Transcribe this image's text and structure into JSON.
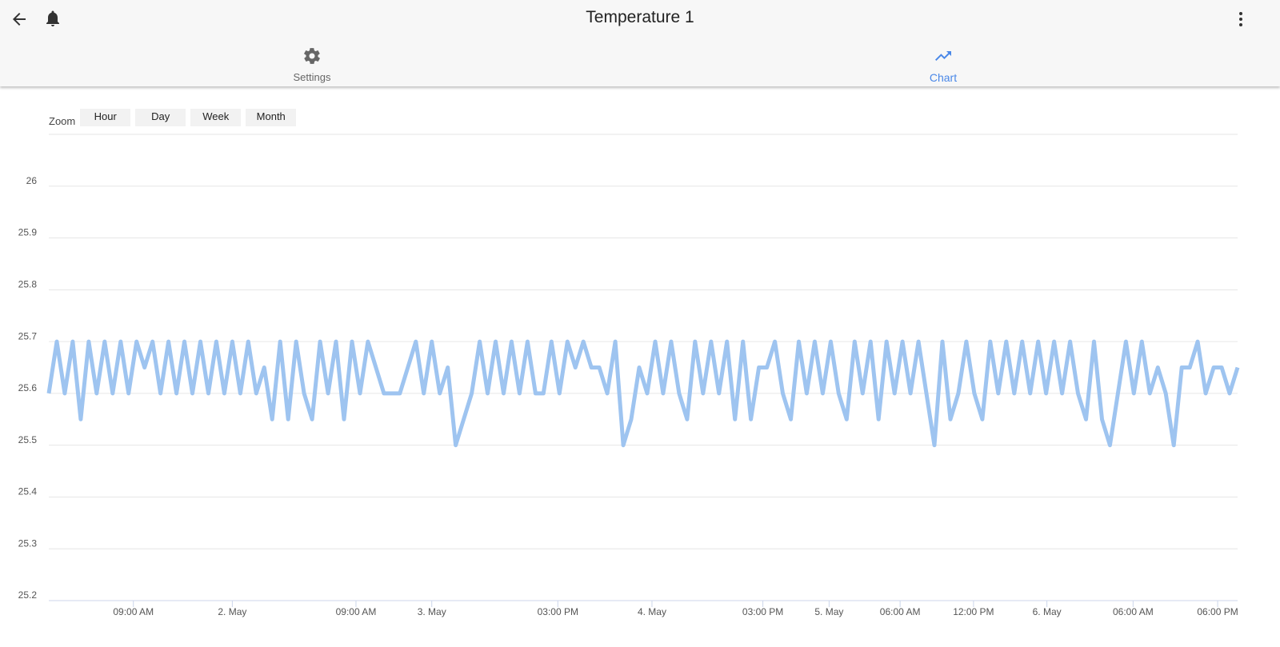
{
  "header": {
    "title": "Temperature 1"
  },
  "tabs": [
    {
      "label": "Settings"
    },
    {
      "label": "Chart"
    }
  ],
  "zoom": {
    "label": "Zoom",
    "buttons": [
      "Hour",
      "Day",
      "Week",
      "Month"
    ]
  },
  "chart_data": {
    "type": "line",
    "color": "#9ec4f0",
    "grid": true,
    "ylim": [
      25.2,
      26.1
    ],
    "yticks": [
      25.2,
      25.3,
      25.4,
      25.5,
      25.6,
      25.7,
      25.8,
      25.9,
      26
    ],
    "xlim": [
      0,
      149
    ],
    "xticks": [
      {
        "value": 10.6,
        "label": "09:00 AM"
      },
      {
        "value": 23,
        "label": "2. May"
      },
      {
        "value": 38.5,
        "label": "09:00 AM"
      },
      {
        "value": 48,
        "label": "3. May"
      },
      {
        "value": 63.8,
        "label": "03:00 PM"
      },
      {
        "value": 75.6,
        "label": "4. May"
      },
      {
        "value": 89.5,
        "label": "03:00 PM"
      },
      {
        "value": 97.8,
        "label": "5. May"
      },
      {
        "value": 106.7,
        "label": "06:00 AM"
      },
      {
        "value": 115.9,
        "label": "12:00 PM"
      },
      {
        "value": 125.1,
        "label": "6. May"
      },
      {
        "value": 135.9,
        "label": "06:00 AM"
      },
      {
        "value": 146.5,
        "label": "06:00 PM"
      }
    ],
    "values": [
      25.6,
      25.7,
      25.6,
      25.7,
      25.55,
      25.7,
      25.6,
      25.7,
      25.6,
      25.7,
      25.6,
      25.7,
      25.65,
      25.7,
      25.6,
      25.7,
      25.6,
      25.7,
      25.6,
      25.7,
      25.6,
      25.7,
      25.6,
      25.7,
      25.6,
      25.7,
      25.6,
      25.65,
      25.55,
      25.7,
      25.55,
      25.7,
      25.6,
      25.55,
      25.7,
      25.6,
      25.7,
      25.55,
      25.7,
      25.6,
      25.7,
      25.65,
      25.6,
      25.6,
      25.6,
      25.65,
      25.7,
      25.6,
      25.7,
      25.6,
      25.65,
      25.5,
      25.55,
      25.6,
      25.7,
      25.6,
      25.7,
      25.6,
      25.7,
      25.6,
      25.7,
      25.6,
      25.6,
      25.7,
      25.6,
      25.7,
      25.65,
      25.7,
      25.65,
      25.65,
      25.6,
      25.7,
      25.5,
      25.55,
      25.65,
      25.6,
      25.7,
      25.6,
      25.7,
      25.6,
      25.55,
      25.7,
      25.6,
      25.7,
      25.6,
      25.7,
      25.55,
      25.7,
      25.55,
      25.65,
      25.65,
      25.7,
      25.6,
      25.55,
      25.7,
      25.6,
      25.7,
      25.6,
      25.7,
      25.6,
      25.55,
      25.7,
      25.6,
      25.7,
      25.55,
      25.7,
      25.6,
      25.7,
      25.6,
      25.7,
      25.6,
      25.5,
      25.7,
      25.55,
      25.6,
      25.7,
      25.6,
      25.55,
      25.7,
      25.6,
      25.7,
      25.6,
      25.7,
      25.6,
      25.7,
      25.6,
      25.7,
      25.6,
      25.7,
      25.6,
      25.55,
      25.7,
      25.55,
      25.5,
      25.6,
      25.7,
      25.6,
      25.7,
      25.6,
      25.65,
      25.6,
      25.5,
      25.65,
      25.65,
      25.7,
      25.6,
      25.65,
      25.65,
      25.6,
      25.65
    ]
  }
}
